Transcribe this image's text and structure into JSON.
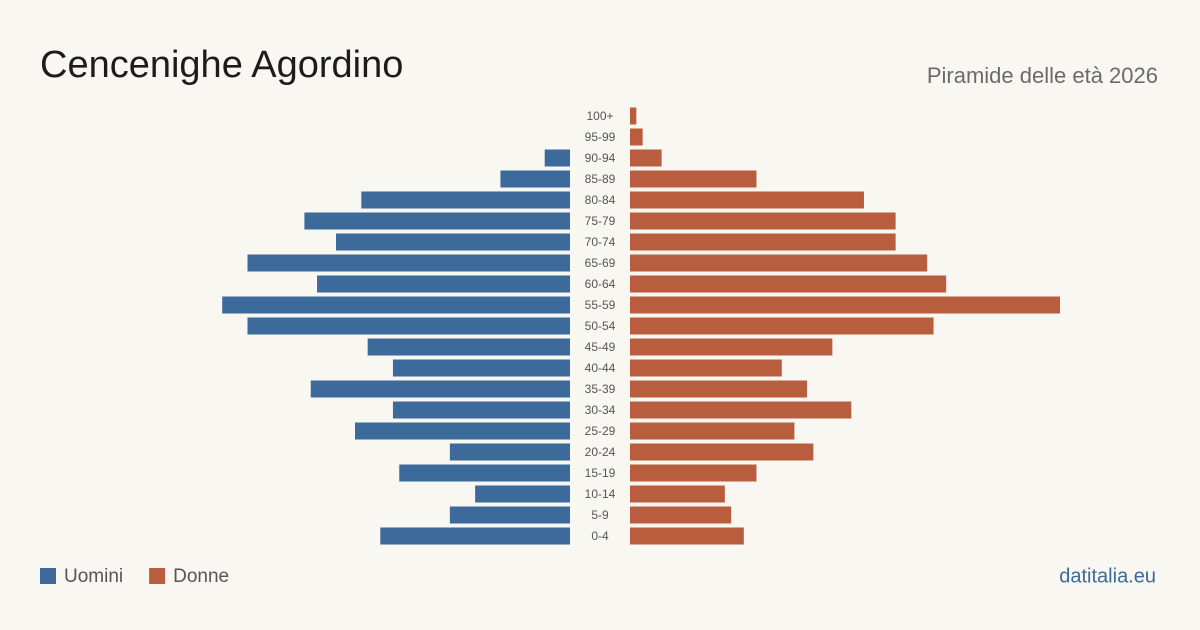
{
  "chart_data": {
    "type": "pyramid",
    "title": "Cencenighe Agordino",
    "subtitle": "Piramide delle età 2026",
    "source": "datitalia.eu",
    "categories": [
      "100+",
      "95-99",
      "90-94",
      "85-89",
      "80-84",
      "75-79",
      "70-74",
      "65-69",
      "60-64",
      "55-59",
      "50-54",
      "45-49",
      "40-44",
      "35-39",
      "30-34",
      "25-29",
      "20-24",
      "15-19",
      "10-14",
      "5-9",
      "0-4"
    ],
    "series": [
      {
        "name": "Uomini",
        "color": "#3b6a9b",
        "values": [
          0,
          0,
          4,
          11,
          33,
          42,
          37,
          51,
          40,
          55,
          51,
          32,
          28,
          41,
          28,
          34,
          19,
          27,
          15,
          19,
          30
        ]
      },
      {
        "name": "Donne",
        "color": "#b85d3d",
        "values": [
          1,
          2,
          5,
          20,
          37,
          42,
          42,
          47,
          50,
          68,
          48,
          32,
          24,
          28,
          35,
          26,
          29,
          20,
          15,
          16,
          18
        ]
      }
    ]
  }
}
